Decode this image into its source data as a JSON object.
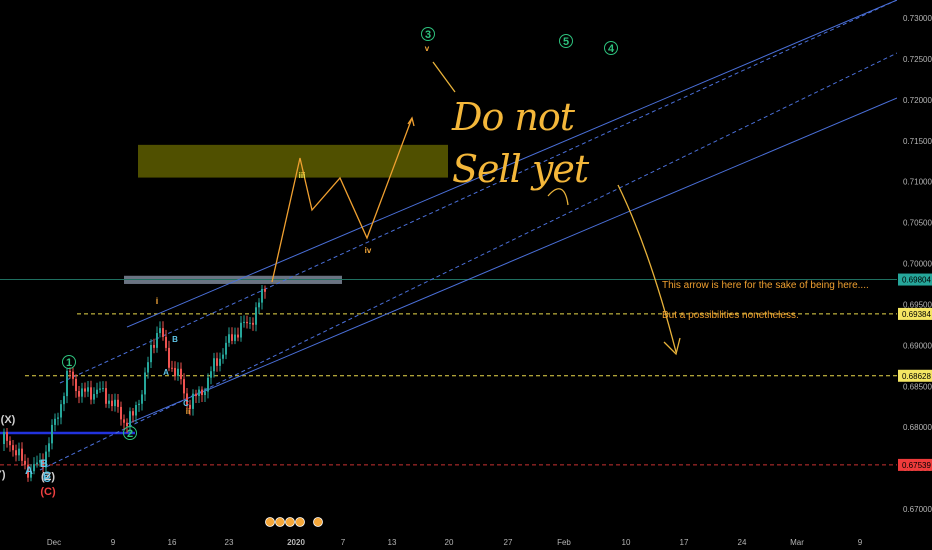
{
  "chart_data": {
    "type": "line",
    "series": [],
    "y_ticks": [
      "0.73000",
      "0.72500",
      "0.72000",
      "0.71500",
      "0.71000",
      "0.70500",
      "0.70000",
      "0.69500",
      "0.69000",
      "0.68500",
      "0.68000",
      "0.67500",
      "0.67000"
    ],
    "x_ticks": [
      "Dec",
      "9",
      "16",
      "23",
      "2020",
      "7",
      "13",
      "20",
      "27",
      "Feb",
      "10",
      "17",
      "24",
      "Mar",
      "9"
    ],
    "price_labels": [
      {
        "value": "0.69804",
        "color": "#26a69a"
      },
      {
        "value": "0.69384",
        "color": "#f5e663"
      },
      {
        "value": "0.68628",
        "color": "#f5e663"
      },
      {
        "value": "0.67539",
        "color": "#ef3b3b"
      }
    ],
    "horizontal_levels": [
      0.69384,
      0.68628,
      0.67539
    ],
    "zone_boxes": [
      {
        "y_from": 0.7105,
        "y_to": 0.7145,
        "color": "#6b6b00"
      },
      {
        "y_from": 0.6975,
        "y_to": 0.6985,
        "color": "#7d8799"
      }
    ],
    "wave_labels": [
      {
        "text": "(X)",
        "color": "#d0d0d0"
      },
      {
        "text": "B",
        "color": "#5fc5e8"
      },
      {
        "text": "C",
        "color": "#5fc5e8"
      },
      {
        "text": "A",
        "color": "#5fc5e8"
      },
      {
        "text": "Y)",
        "color": "#d0d0d0"
      },
      {
        "text": "(Z)",
        "color": "#d0d0d0"
      },
      {
        "text": "C",
        "color": "#5fc5e8"
      },
      {
        "text": "(C)",
        "color": "#ef4040"
      },
      {
        "text": "1",
        "color": "#2ec27e"
      },
      {
        "text": "2",
        "color": "#2ec27e"
      },
      {
        "text": "3",
        "color": "#2ec27e"
      },
      {
        "text": "4",
        "color": "#2ec27e"
      },
      {
        "text": "5",
        "color": "#2ec27e"
      },
      {
        "text": "i",
        "color": "#f4a73a"
      },
      {
        "text": "ii",
        "color": "#f4a73a"
      },
      {
        "text": "iii",
        "color": "#f4e04a"
      },
      {
        "text": "iv",
        "color": "#f4a73a"
      },
      {
        "text": "v",
        "color": "#f4a73a"
      },
      {
        "text": "B",
        "color": "#5fc5e8"
      },
      {
        "text": "A",
        "color": "#5fc5e8"
      },
      {
        "text": "C",
        "color": "#5fc5e8"
      }
    ],
    "annotation": "This arrow is here for the sake of being here....\nBut a possibilities nonetheless.",
    "handwritten": [
      "Do not",
      "Sell yet"
    ],
    "grid": false
  },
  "note_lines": [
    "This arrow is here for the sake of being here....",
    "But a possibilities nonetheless."
  ],
  "handwriting": {
    "line1": "Do not",
    "line2": "Sell yet"
  },
  "colors": {
    "background": "#000000",
    "channel": "#4a6fd8",
    "projection": "#f0a030",
    "up_candle": "#26a69a",
    "down_candle": "#ef5350"
  }
}
